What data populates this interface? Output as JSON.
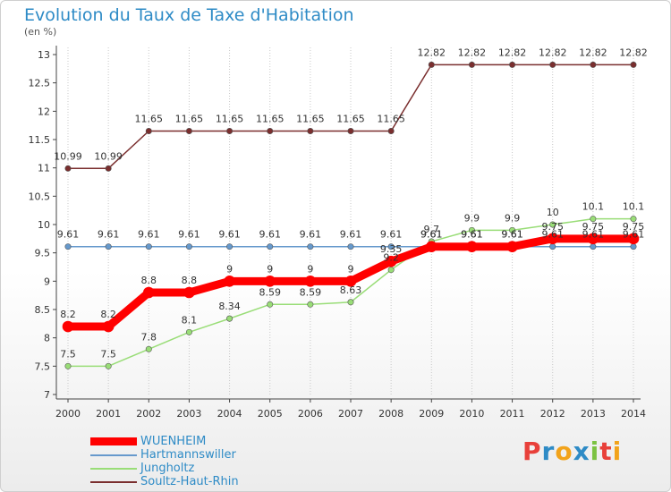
{
  "title": "Evolution du Taux de Taxe d'Habitation",
  "unit_label": "(en %)",
  "logo": {
    "text": "Proxiti",
    "letters": [
      "P",
      "r",
      "o",
      "x",
      "i",
      "t",
      "i"
    ],
    "colors": [
      "#e8403a",
      "#2e8bc6",
      "#f2a31b",
      "#2e8bc6",
      "#7cc242",
      "#e8403a",
      "#f2a31b"
    ]
  },
  "chart_data": {
    "type": "line",
    "title": "Evolution du Taux de Taxe d'Habitation",
    "ylabel": "(en %)",
    "xlabel": "",
    "x": [
      "2000",
      "2001",
      "2002",
      "2003",
      "2004",
      "2005",
      "2006",
      "2007",
      "2008",
      "2009",
      "2010",
      "2011",
      "2012",
      "2013",
      "2014"
    ],
    "ylim": [
      7,
      13
    ],
    "yticks": [
      "7",
      "7.5",
      "8",
      "8.5",
      "9",
      "9.5",
      "10",
      "10.5",
      "11",
      "11.5",
      "12",
      "12.5",
      "13"
    ],
    "grid": "vertical dotted",
    "legend_position": "bottom-left",
    "series": [
      {
        "name": "WUENHEIM",
        "color": "#ff0000",
        "width": 9,
        "values": [
          8.2,
          8.2,
          8.8,
          8.8,
          9,
          9,
          9,
          9,
          9.35,
          9.61,
          9.61,
          9.61,
          9.75,
          9.75,
          9.75
        ],
        "labels": [
          "8.2",
          "8.2",
          "8.8",
          "8.8",
          "9",
          "9",
          "9",
          "9",
          "9.35",
          "9.61",
          "9.61",
          "9.61",
          "9.75",
          "9.75",
          "9.75"
        ]
      },
      {
        "name": "Hartmannswiller",
        "color": "#6699cc",
        "width": 1.5,
        "values": [
          9.61,
          9.61,
          9.61,
          9.61,
          9.61,
          9.61,
          9.61,
          9.61,
          9.61,
          9.61,
          9.61,
          9.61,
          9.61,
          9.61,
          9.61
        ],
        "labels": [
          "9.61",
          "9.61",
          "9.61",
          "9.61",
          "9.61",
          "9.61",
          "9.61",
          "9.61",
          "9.61",
          "9.61",
          "9.61",
          "9.61",
          "9.61",
          "9.61",
          "9.61"
        ]
      },
      {
        "name": "Jungholtz",
        "color": "#99dd77",
        "width": 1.5,
        "values": [
          7.5,
          7.5,
          7.8,
          8.1,
          8.34,
          8.59,
          8.59,
          8.63,
          9.2,
          9.7,
          9.9,
          9.9,
          10,
          10.1,
          10.1
        ],
        "labels": [
          "7.5",
          "7.5",
          "7.8",
          "8.1",
          "8.34",
          "8.59",
          "8.59",
          "8.63",
          "9.2",
          "9.7",
          "9.9",
          "9.9",
          "10",
          "10.1",
          "10.1"
        ]
      },
      {
        "name": "Soultz-Haut-Rhin",
        "color": "#7a2e2e",
        "width": 1.5,
        "values": [
          10.99,
          10.99,
          11.65,
          11.65,
          11.65,
          11.65,
          11.65,
          11.65,
          11.65,
          12.82,
          12.82,
          12.82,
          12.82,
          12.82,
          12.82
        ],
        "labels": [
          "10.99",
          "10.99",
          "11.65",
          "11.65",
          "11.65",
          "11.65",
          "11.65",
          "11.65",
          "11.65",
          "12.82",
          "12.82",
          "12.82",
          "12.82",
          "12.82",
          "12.82"
        ]
      }
    ]
  }
}
